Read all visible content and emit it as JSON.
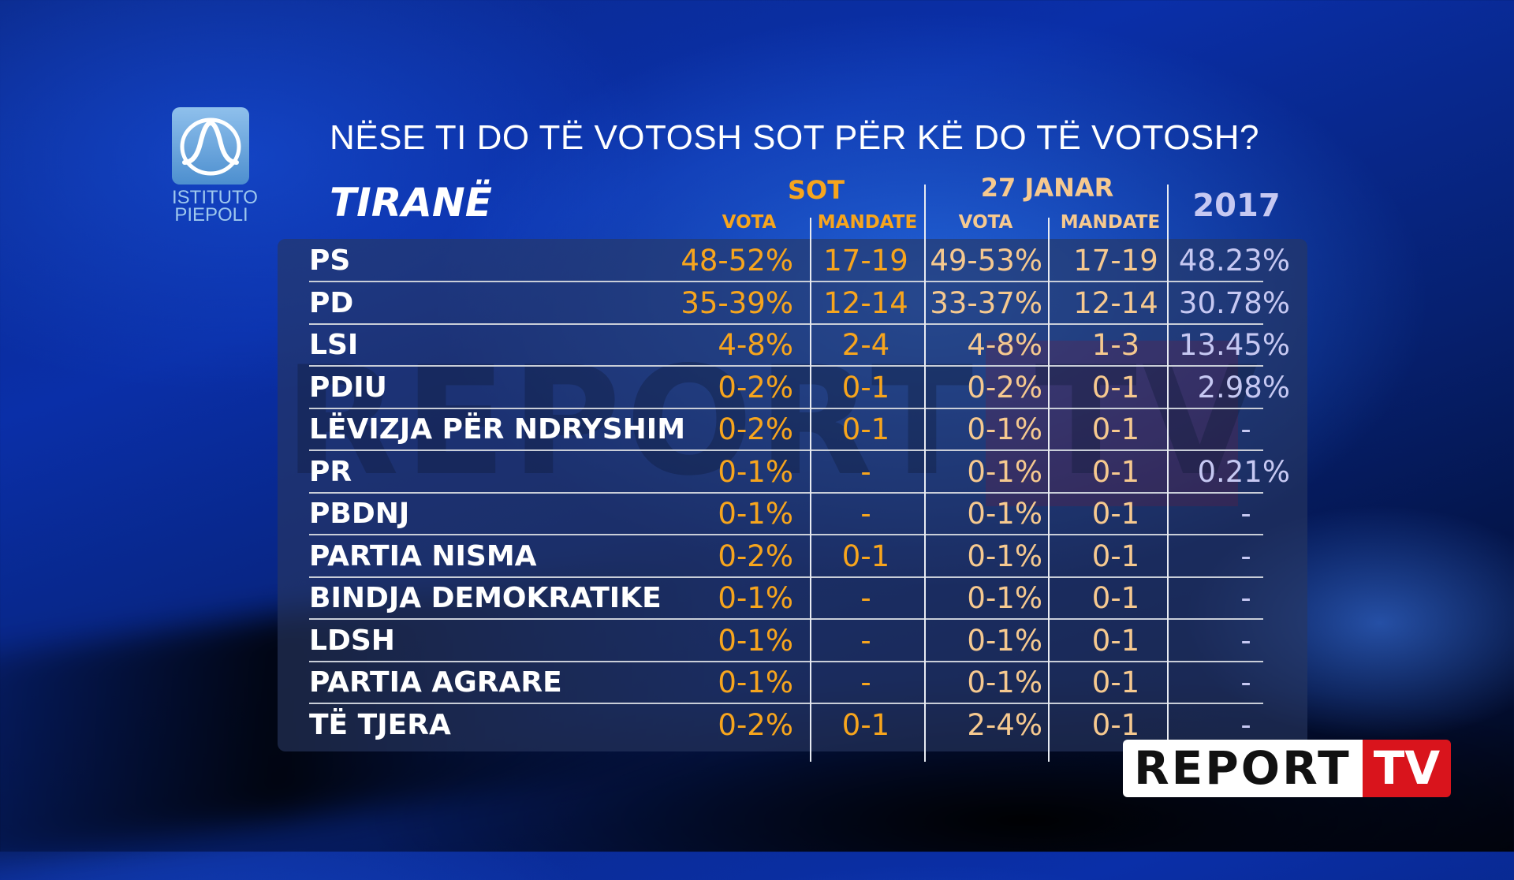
{
  "logo": {
    "line1": "ISTITUTO",
    "line2": "PIEPOLI"
  },
  "question": "NËSE TI DO TË VOTOSH SOT PËR KË DO TË VOTOSH?",
  "city": "TIRANË",
  "headers": {
    "sot": "SOT",
    "janar": "27 JANAR",
    "year": "2017",
    "vota": "VOTA",
    "mandate": "MANDATE"
  },
  "rows": [
    {
      "party": "PS",
      "sot_vota": "48-52%",
      "sot_mandate": "17-19",
      "jan_vota": "49-53%",
      "jan_mandate": "17-19",
      "y2017": "48.23%"
    },
    {
      "party": "PD",
      "sot_vota": "35-39%",
      "sot_mandate": "12-14",
      "jan_vota": "33-37%",
      "jan_mandate": "12-14",
      "y2017": "30.78%"
    },
    {
      "party": "LSI",
      "sot_vota": "4-8%",
      "sot_mandate": "2-4",
      "jan_vota": "4-8%",
      "jan_mandate": "1-3",
      "y2017": "13.45%"
    },
    {
      "party": "PDIU",
      "sot_vota": "0-2%",
      "sot_mandate": "0-1",
      "jan_vota": "0-2%",
      "jan_mandate": "0-1",
      "y2017": "2.98%"
    },
    {
      "party": "LËVIZJA PËR NDRYSHIM",
      "sot_vota": "0-2%",
      "sot_mandate": "0-1",
      "jan_vota": "0-1%",
      "jan_mandate": "0-1",
      "y2017": "-"
    },
    {
      "party": "PR",
      "sot_vota": "0-1%",
      "sot_mandate": "-",
      "jan_vota": "0-1%",
      "jan_mandate": "0-1",
      "y2017": "0.21%"
    },
    {
      "party": "PBDNJ",
      "sot_vota": "0-1%",
      "sot_mandate": "-",
      "jan_vota": "0-1%",
      "jan_mandate": "0-1",
      "y2017": "-"
    },
    {
      "party": "PARTIA NISMA",
      "sot_vota": "0-2%",
      "sot_mandate": "0-1",
      "jan_vota": "0-1%",
      "jan_mandate": "0-1",
      "y2017": "-"
    },
    {
      "party": "BINDJA DEMOKRATIKE",
      "sot_vota": "0-1%",
      "sot_mandate": "-",
      "jan_vota": "0-1%",
      "jan_mandate": "0-1",
      "y2017": "-"
    },
    {
      "party": "LDSH",
      "sot_vota": "0-1%",
      "sot_mandate": "-",
      "jan_vota": "0-1%",
      "jan_mandate": "0-1",
      "y2017": "-"
    },
    {
      "party": "PARTIA AGRARE",
      "sot_vota": "0-1%",
      "sot_mandate": "-",
      "jan_vota": "0-1%",
      "jan_mandate": "0-1",
      "y2017": "-"
    },
    {
      "party": "TË TJERA",
      "sot_vota": "0-2%",
      "sot_mandate": "0-1",
      "jan_vota": "2-4%",
      "jan_mandate": "0-1",
      "y2017": "-"
    }
  ],
  "watermark": "REPORT TV",
  "brand": {
    "report": "REPORT",
    "tv": "TV"
  },
  "colors": {
    "sot": "#f7a51d",
    "janar": "#f6c98f",
    "year2017": "#c6c8f2",
    "brand_red": "#d9141c"
  }
}
